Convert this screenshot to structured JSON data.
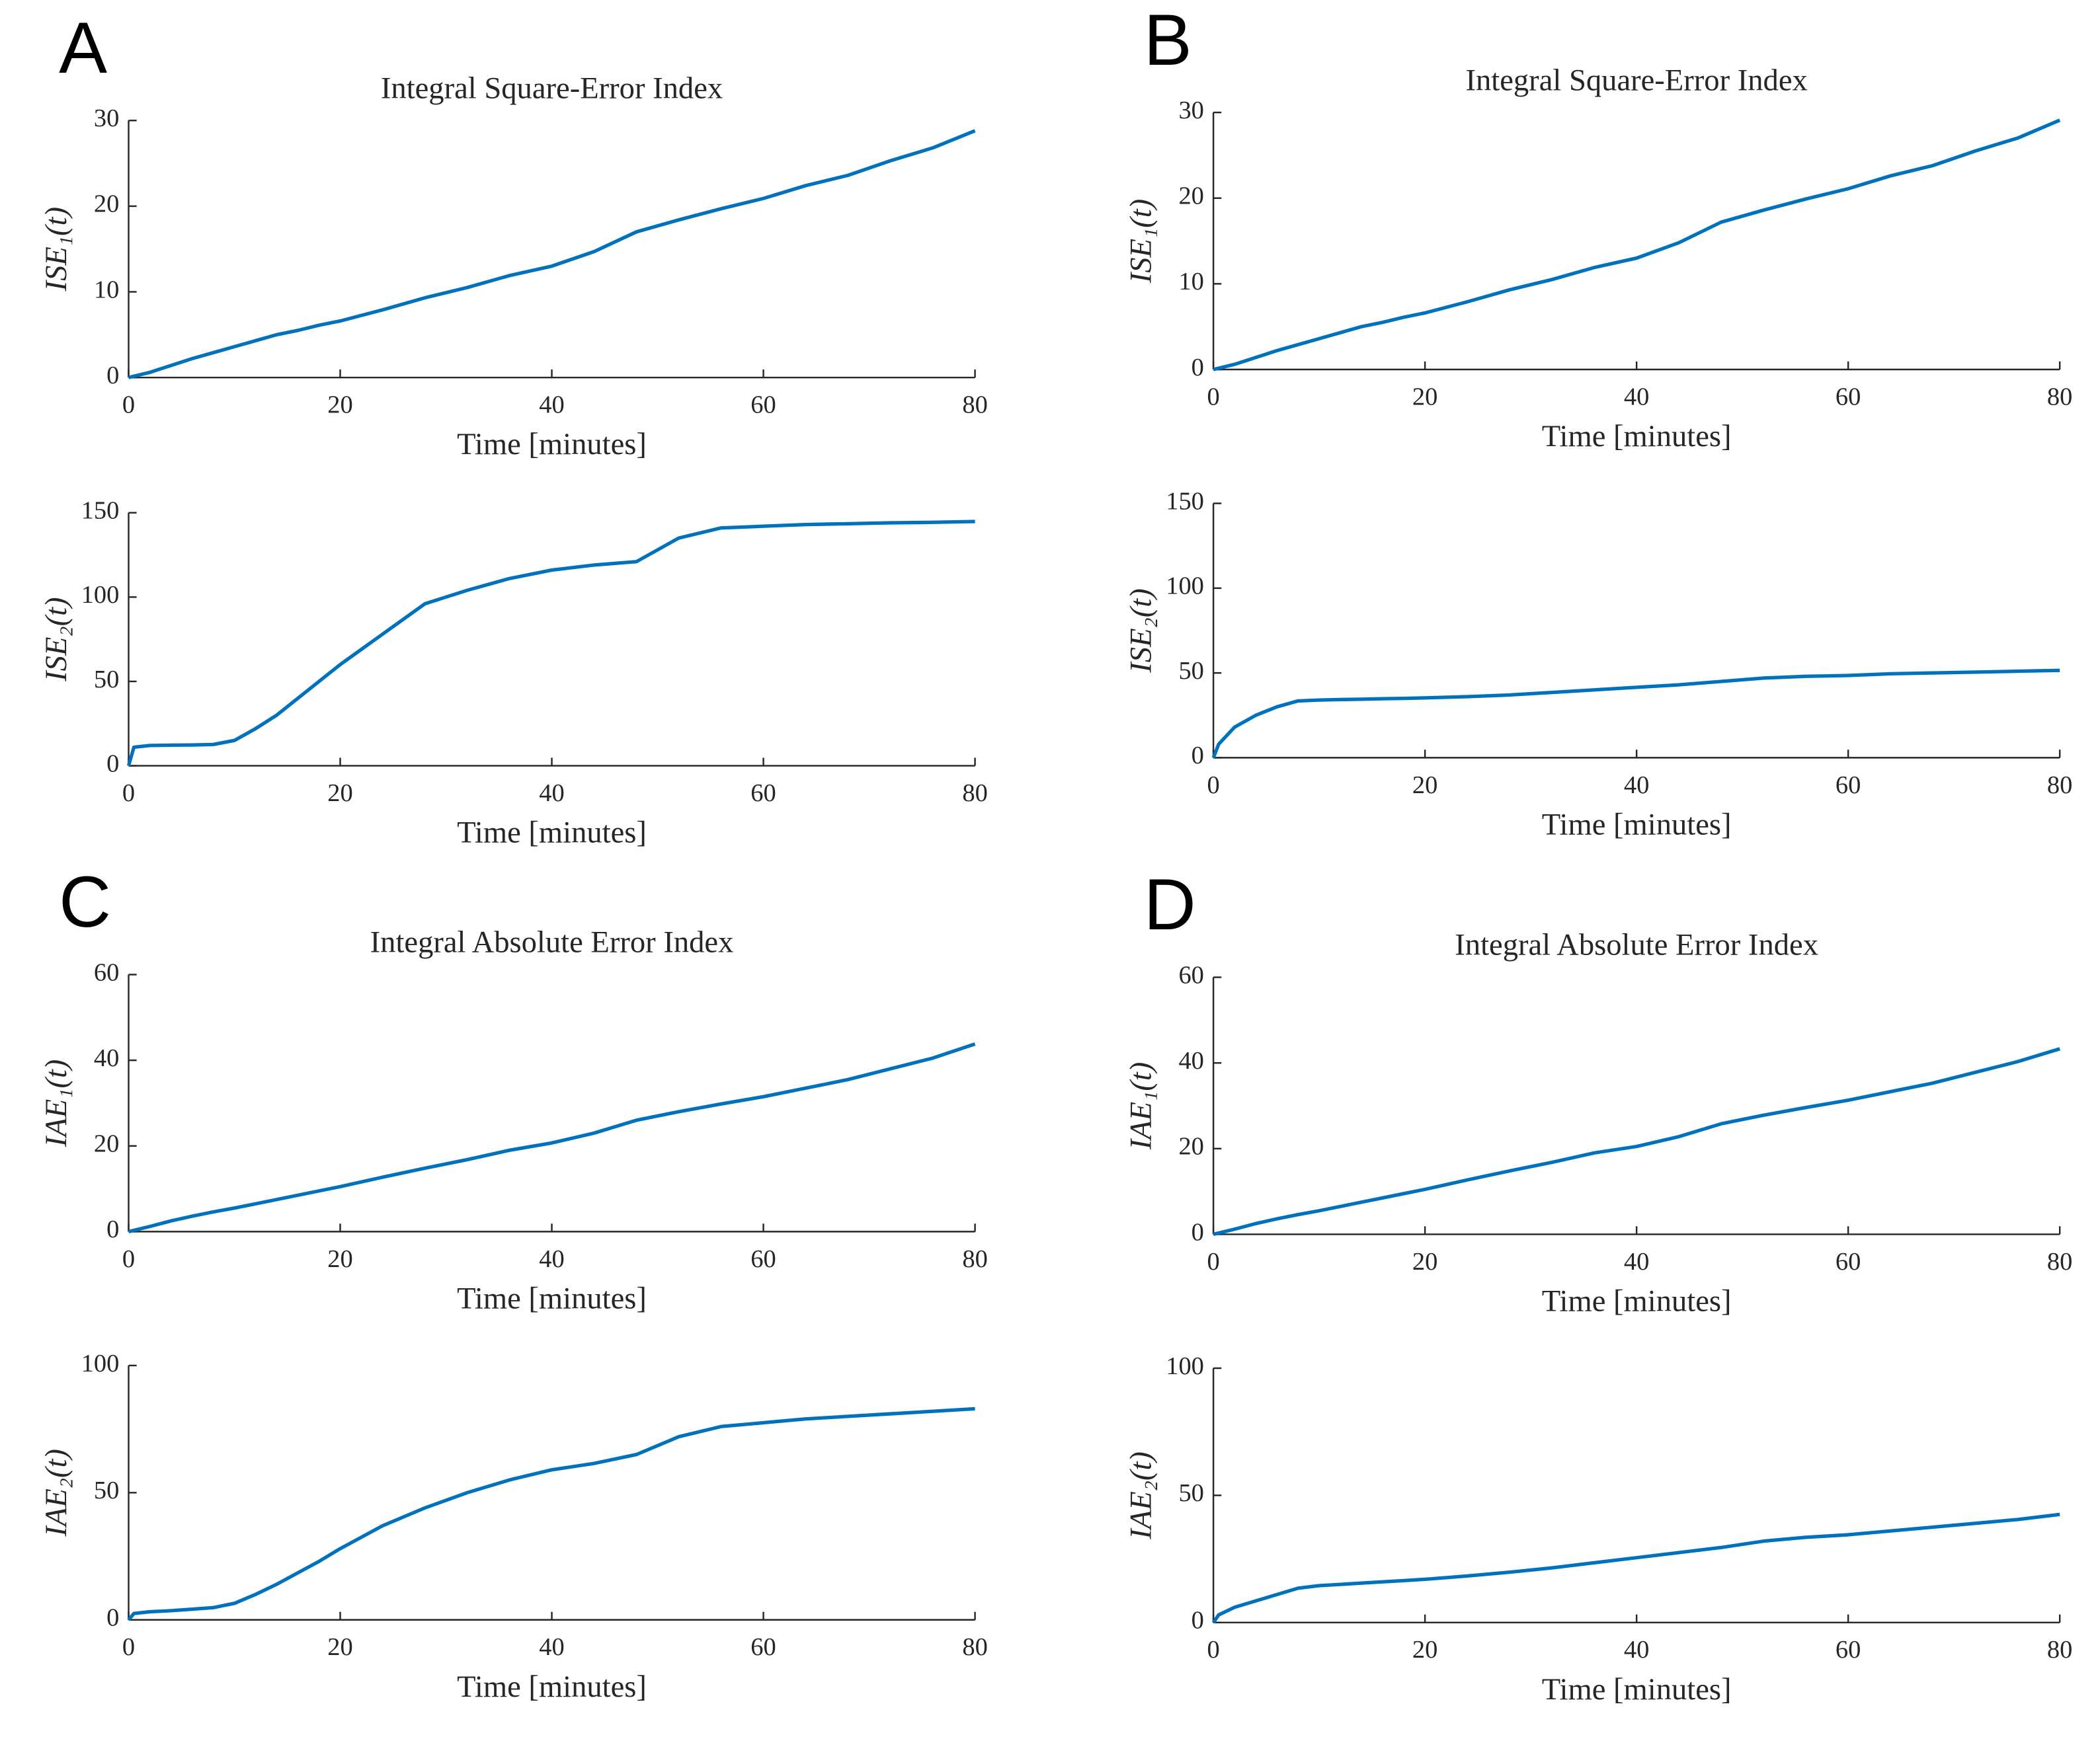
{
  "chart_data": [
    {
      "type": "line",
      "panel": "A",
      "title": "Integral Square-Error Index",
      "xlabel": "Time [minutes]",
      "ylabel": "ISE₁(t)",
      "x": [
        0,
        0.5,
        2,
        4,
        6,
        8,
        10,
        12,
        14,
        16,
        18,
        20,
        24,
        28,
        32,
        36,
        40,
        44,
        48,
        52,
        56,
        60,
        64,
        68,
        72,
        76,
        80
      ],
      "values": [
        0,
        0.15,
        0.6,
        1.4,
        2.2,
        2.9,
        3.6,
        4.3,
        5,
        5.5,
        6.1,
        6.6,
        7.9,
        9.3,
        10.5,
        11.9,
        13,
        14.7,
        17,
        18.4,
        19.7,
        20.9,
        22.4,
        23.6,
        25.3,
        26.8,
        28.8
      ],
      "color": "#0072bd",
      "xlim": [
        0,
        80
      ],
      "xticks": [
        0,
        20,
        40,
        60,
        80
      ],
      "ylim": [
        0,
        30
      ],
      "yticks": [
        0,
        10,
        20,
        30
      ]
    },
    {
      "type": "line",
      "xlabel": "Time [minutes]",
      "ylabel": "ISE₂(t)",
      "x": [
        0,
        0.5,
        2,
        4,
        6,
        8,
        10,
        12,
        14,
        16,
        18,
        20,
        24,
        28,
        32,
        36,
        40,
        44,
        48,
        52,
        56,
        60,
        64,
        68,
        72,
        76,
        80
      ],
      "values": [
        0,
        11,
        12,
        12.2,
        12.3,
        12.6,
        15,
        22,
        30,
        40,
        50,
        60,
        78,
        96,
        104,
        111,
        116,
        119,
        121,
        135,
        141,
        142,
        143,
        143.5,
        144,
        144.3,
        144.8
      ],
      "color": "#0072bd",
      "xlim": [
        0,
        80
      ],
      "xticks": [
        0,
        20,
        40,
        60,
        80
      ],
      "ylim": [
        0,
        150
      ],
      "yticks": [
        0,
        50,
        100,
        150
      ]
    },
    {
      "type": "line",
      "panel": "B",
      "title": "Integral Square-Error Index",
      "xlabel": "Time [minutes]",
      "ylabel": "ISE₁(t)",
      "x": [
        0,
        0.5,
        2,
        4,
        6,
        8,
        10,
        12,
        14,
        16,
        18,
        20,
        24,
        28,
        32,
        36,
        40,
        44,
        48,
        52,
        56,
        60,
        64,
        68,
        72,
        76,
        80
      ],
      "values": [
        0,
        0.15,
        0.6,
        1.4,
        2.2,
        2.9,
        3.6,
        4.3,
        5,
        5.5,
        6.1,
        6.6,
        7.9,
        9.3,
        10.5,
        11.9,
        13,
        14.8,
        17.2,
        18.6,
        19.9,
        21.1,
        22.6,
        23.8,
        25.5,
        27,
        29.1
      ],
      "color": "#0072bd",
      "xlim": [
        0,
        80
      ],
      "xticks": [
        0,
        20,
        40,
        60,
        80
      ],
      "ylim": [
        0,
        30
      ],
      "yticks": [
        0,
        10,
        20,
        30
      ]
    },
    {
      "type": "line",
      "xlabel": "Time [minutes]",
      "ylabel": "ISE₂(t)",
      "x": [
        0,
        0.5,
        2,
        4,
        6,
        8,
        10,
        12,
        14,
        16,
        18,
        20,
        24,
        28,
        32,
        36,
        40,
        44,
        48,
        52,
        56,
        60,
        64,
        68,
        72,
        76,
        80
      ],
      "values": [
        0,
        8,
        18,
        25,
        30,
        33.5,
        34,
        34.3,
        34.5,
        34.8,
        35,
        35.3,
        36,
        37,
        38.5,
        40,
        41.5,
        43,
        45,
        47,
        48,
        48.5,
        49.5,
        50,
        50.5,
        51,
        51.5
      ],
      "color": "#0072bd",
      "xlim": [
        0,
        80
      ],
      "xticks": [
        0,
        20,
        40,
        60,
        80
      ],
      "ylim": [
        0,
        150
      ],
      "yticks": [
        0,
        50,
        100,
        150
      ]
    },
    {
      "type": "line",
      "panel": "C",
      "title": "Integral Absolute Error Index",
      "xlabel": "Time [minutes]",
      "ylabel": "IAE₁(t)",
      "x": [
        0,
        0.5,
        2,
        4,
        6,
        8,
        10,
        12,
        14,
        16,
        18,
        20,
        24,
        28,
        32,
        36,
        40,
        44,
        48,
        52,
        56,
        60,
        64,
        68,
        72,
        76,
        80
      ],
      "values": [
        0,
        0.3,
        1.2,
        2.5,
        3.6,
        4.6,
        5.5,
        6.5,
        7.5,
        8.5,
        9.5,
        10.5,
        12.7,
        14.8,
        16.8,
        19,
        20.7,
        23,
        26,
        28,
        29.8,
        31.5,
        33.5,
        35.5,
        38,
        40.5,
        43.8
      ],
      "color": "#0072bd",
      "xlim": [
        0,
        80
      ],
      "xticks": [
        0,
        20,
        40,
        60,
        80
      ],
      "ylim": [
        0,
        60
      ],
      "yticks": [
        0,
        20,
        40,
        60
      ]
    },
    {
      "type": "line",
      "xlabel": "Time [minutes]",
      "ylabel": "IAE₂(t)",
      "x": [
        0,
        0.5,
        2,
        4,
        6,
        8,
        10,
        12,
        14,
        16,
        18,
        20,
        24,
        28,
        32,
        36,
        40,
        44,
        48,
        52,
        56,
        60,
        64,
        68,
        72,
        76,
        80
      ],
      "values": [
        0,
        2.5,
        3.2,
        3.6,
        4.2,
        4.8,
        6.5,
        10,
        14,
        18.5,
        23,
        28,
        37,
        44,
        50,
        55,
        59,
        61.5,
        65,
        72,
        76,
        77.5,
        79,
        80,
        81,
        82,
        83
      ],
      "color": "#0072bd",
      "xlim": [
        0,
        80
      ],
      "xticks": [
        0,
        20,
        40,
        60,
        80
      ],
      "ylim": [
        0,
        100
      ],
      "yticks": [
        0,
        50,
        100
      ]
    },
    {
      "type": "line",
      "panel": "D",
      "title": "Integral Absolute Error Index",
      "xlabel": "Time [minutes]",
      "ylabel": "IAE₁(t)",
      "x": [
        0,
        0.5,
        2,
        4,
        6,
        8,
        10,
        12,
        14,
        16,
        18,
        20,
        24,
        28,
        32,
        36,
        40,
        44,
        48,
        52,
        56,
        60,
        64,
        68,
        72,
        76,
        80
      ],
      "values": [
        0,
        0.3,
        1.2,
        2.5,
        3.6,
        4.6,
        5.5,
        6.5,
        7.5,
        8.5,
        9.5,
        10.5,
        12.7,
        14.8,
        16.8,
        19,
        20.5,
        22.8,
        25.8,
        27.8,
        29.6,
        31.3,
        33.3,
        35.3,
        37.8,
        40.3,
        43.3
      ],
      "color": "#0072bd",
      "xlim": [
        0,
        80
      ],
      "xticks": [
        0,
        20,
        40,
        60,
        80
      ],
      "ylim": [
        0,
        60
      ],
      "yticks": [
        0,
        20,
        40,
        60
      ]
    },
    {
      "type": "line",
      "xlabel": "Time [minutes]",
      "ylabel": "IAE₂(t)",
      "x": [
        0,
        0.5,
        2,
        4,
        6,
        8,
        10,
        12,
        14,
        16,
        18,
        20,
        24,
        28,
        32,
        36,
        40,
        44,
        48,
        52,
        56,
        60,
        64,
        68,
        72,
        76,
        80
      ],
      "values": [
        0,
        3,
        6,
        8.5,
        11,
        13.5,
        14.5,
        15,
        15.5,
        16,
        16.5,
        17,
        18.3,
        19.8,
        21.5,
        23.5,
        25.5,
        27.5,
        29.5,
        32,
        33.5,
        34.5,
        36,
        37.5,
        39,
        40.5,
        42.5
      ],
      "color": "#0072bd",
      "xlim": [
        0,
        80
      ],
      "xticks": [
        0,
        20,
        40,
        60,
        80
      ],
      "ylim": [
        0,
        100
      ],
      "yticks": [
        0,
        50,
        100
      ]
    }
  ]
}
